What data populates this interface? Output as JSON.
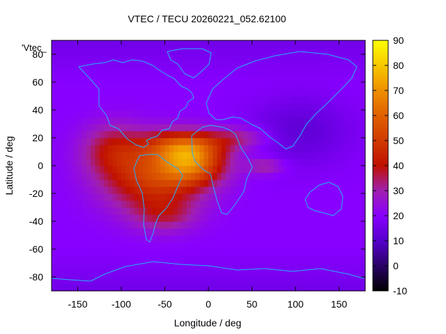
{
  "chart_data": {
    "type": "heatmap",
    "title": "VTEC / TECU 20260221_052.62100",
    "xlabel": "Longitude / deg",
    "ylabel": "Latitude / deg",
    "legend_key": "'Vtec_",
    "xlim": [
      -180,
      180
    ],
    "ylim": [
      -90,
      90
    ],
    "x_ticks": [
      -150,
      -100,
      -50,
      0,
      50,
      100,
      150
    ],
    "y_ticks": [
      -80,
      -60,
      -40,
      -20,
      0,
      20,
      40,
      60,
      80
    ],
    "colorbar": {
      "range": [
        -10,
        90
      ],
      "ticks": [
        90,
        80,
        70,
        60,
        50,
        40,
        30,
        20,
        10,
        0,
        -10
      ],
      "palette": [
        {
          "v": -10,
          "color": "#000000"
        },
        {
          "v": 0,
          "color": "#2a0066"
        },
        {
          "v": 10,
          "color": "#5500cc"
        },
        {
          "v": 20,
          "color": "#8800ff"
        },
        {
          "v": 30,
          "color": "#a020b0"
        },
        {
          "v": 40,
          "color": "#c01000"
        },
        {
          "v": 50,
          "color": "#d03a00"
        },
        {
          "v": 60,
          "color": "#e06000"
        },
        {
          "v": 70,
          "color": "#ee9000"
        },
        {
          "v": 80,
          "color": "#f8c800"
        },
        {
          "v": 90,
          "color": "#ffff00"
        }
      ]
    },
    "background_level": 20,
    "anomalies": [
      {
        "lon": -65,
        "lat": -8,
        "amp": 28,
        "slon": 55,
        "slat": 24
      },
      {
        "lon": -20,
        "lat": 3,
        "amp": 38,
        "slon": 38,
        "slat": 16
      },
      {
        "lon": -30,
        "lat": 15,
        "amp": 20,
        "slon": 45,
        "slat": 10
      },
      {
        "lon": -110,
        "lat": 12,
        "amp": 16,
        "slon": 35,
        "slat": 18
      },
      {
        "lon": 35,
        "lat": 20,
        "amp": 12,
        "slon": 35,
        "slat": 8
      },
      {
        "lon": 65,
        "lat": 0,
        "amp": 12,
        "slon": 22,
        "slat": 6
      },
      {
        "lon": -50,
        "lat": -35,
        "amp": 12,
        "slon": 35,
        "slat": 12
      },
      {
        "lon": 105,
        "lat": 25,
        "amp": -8,
        "slon": 60,
        "slat": 25
      }
    ]
  }
}
